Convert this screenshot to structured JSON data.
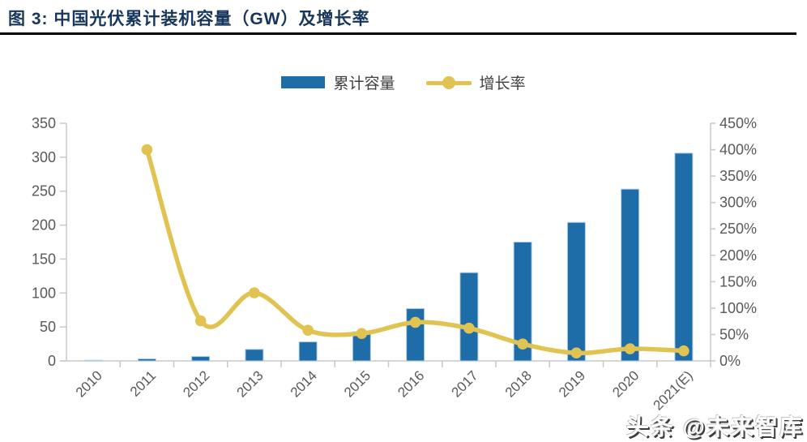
{
  "figure": {
    "title": "图 3: 中国光伏累计装机容量（GW）及增长率",
    "watermark": "头条 @未来智库"
  },
  "legend": [
    {
      "label": "累计容量",
      "type": "bar",
      "color": "#1e6ca8"
    },
    {
      "label": "增长率",
      "type": "line",
      "color": "#e0c351"
    }
  ],
  "colors": {
    "bar_fill": "#1e6ca8",
    "bar_border": "#aecde8",
    "line": "#e0c351",
    "marker": "#e0c351",
    "axis_line": "#c9c9c9",
    "tick_label": "#595959",
    "title": "#17365d"
  },
  "chart_data": {
    "type": "bar",
    "subtype": "combo-bar-line-dual-axis",
    "title": "中国光伏累计装机容量（GW）及增长率",
    "grid": false,
    "legend_position": "top",
    "categories": [
      "2010",
      "2011",
      "2012",
      "2013",
      "2014",
      "2015",
      "2016",
      "2017",
      "2018",
      "2019",
      "2020",
      "2021(E)"
    ],
    "series": [
      {
        "name": "累计容量",
        "type": "bar",
        "axis": "left",
        "unit": "GW",
        "values": [
          1,
          3,
          6.5,
          17,
          28,
          43,
          77,
          130,
          175,
          204,
          253,
          306
        ]
      },
      {
        "name": "增长率",
        "type": "line",
        "axis": "right",
        "unit": "%",
        "values": [
          null,
          400,
          76,
          129,
          58,
          52,
          73,
          62,
          32,
          15,
          23,
          19
        ]
      }
    ],
    "left_axis": {
      "min": 0,
      "max": 350,
      "step": 50,
      "ticks": [
        "0",
        "50",
        "100",
        "150",
        "200",
        "250",
        "300",
        "350"
      ]
    },
    "right_axis": {
      "min": 0,
      "max": 450,
      "step": 50,
      "ticks": [
        "0%",
        "50%",
        "100%",
        "150%",
        "200%",
        "250%",
        "300%",
        "350%",
        "400%",
        "450%"
      ]
    }
  }
}
